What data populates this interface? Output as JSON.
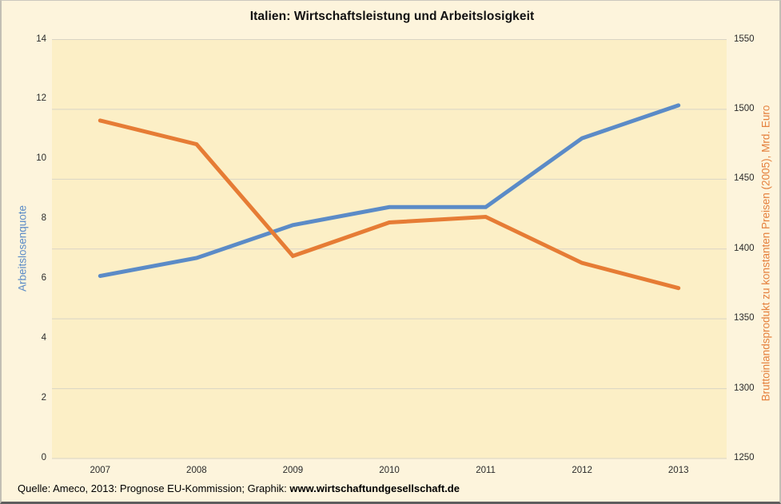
{
  "title": "Italien: Wirtschaftsleistung und Arbeitslosigkeit",
  "footer": {
    "source": "Quelle: Ameco, 2013: Prognose EU-Kommission; Graphik: ",
    "url": "www.wirtschaftundgesellschaft.de"
  },
  "colors": {
    "unemployment_line": "#5B8BC7",
    "gdp_line": "#E67C35",
    "outer_background": "#FDF4DC",
    "plot_background": "#FCEFC6",
    "gridline": "#D9D4C5",
    "left_axis_text": "#5B8BC7",
    "right_axis_text": "#E5813E"
  },
  "chart_data": {
    "type": "line",
    "title": "Italien: Wirtschaftsleistung und Arbeitslosigkeit",
    "categories": [
      "2007",
      "2008",
      "2009",
      "2010",
      "2011",
      "2012",
      "2013"
    ],
    "series": [
      {
        "name": "Arbeitslosenquote",
        "axis": "left",
        "color": "#5B8BC7",
        "values": [
          6.1,
          6.7,
          7.8,
          8.4,
          8.4,
          10.7,
          11.8
        ]
      },
      {
        "name": "Bruttoinlandsprodukt zu konstanten Preisen (2005), Mrd. Euro",
        "axis": "right",
        "color": "#E67C35",
        "values": [
          1492,
          1475,
          1395,
          1419,
          1423,
          1390,
          1372
        ]
      }
    ],
    "ylabel_left": "Arbeitslosenquote",
    "ylabel_right": "Bruttoinlandsprodukt zu konstanten Preisen (2005), Mrd. Euro",
    "axes": {
      "left": {
        "ticks": [
          0,
          2,
          4,
          6,
          8,
          10,
          12,
          14
        ],
        "range": [
          0,
          14
        ]
      },
      "right": {
        "ticks": [
          1250,
          1300,
          1350,
          1400,
          1450,
          1500,
          1550
        ],
        "range": [
          1250,
          1550
        ]
      }
    },
    "grid": "horizontal gridlines aligned to right axis, every 50 Mrd. Euro",
    "legend": "none"
  }
}
